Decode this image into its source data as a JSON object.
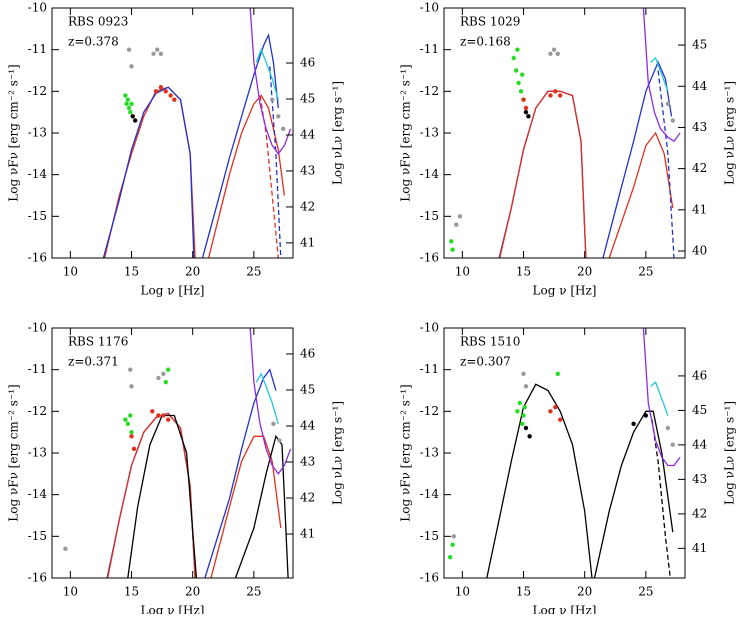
{
  "chart_data": [
    {
      "type": "line",
      "annotations": [
        "RBS 0923",
        "z=0.378"
      ],
      "xlabel": "Log ν [Hz]",
      "ylabel": "Log νFν [erg cm⁻² s⁻¹]",
      "y2label": "Log νLν [erg s⁻¹]",
      "xlim": [
        8.5,
        28.2
      ],
      "xticks": [
        10,
        15,
        20,
        25
      ],
      "ylim": [
        -16,
        -10
      ],
      "yticks": [
        -16,
        -15,
        -14,
        -13,
        -12,
        -11,
        -10
      ],
      "y2lim": [
        40.58,
        47.53
      ],
      "y2ticks": [
        41,
        42,
        43,
        44,
        45,
        46
      ],
      "series": [
        {
          "mode": "line",
          "color": "#e0301e",
          "dashed": false,
          "x": [
            12.8,
            14,
            15,
            16,
            17,
            18,
            19,
            19.8,
            20.2
          ],
          "values": [
            -16,
            -14.5,
            -13.5,
            -12.6,
            -12.0,
            -11.9,
            -12.2,
            -13.5,
            -16
          ]
        },
        {
          "mode": "line",
          "color": "#2233cc",
          "dashed": false,
          "x": [
            12.7,
            14,
            15,
            16,
            17,
            18,
            19,
            19.8,
            20.1
          ],
          "values": [
            -16,
            -14.6,
            -13.4,
            -12.5,
            -12.05,
            -11.9,
            -12.2,
            -13.5,
            -16
          ]
        },
        {
          "mode": "line",
          "color": "#2233cc",
          "dashed": false,
          "x": [
            20.8,
            22,
            23,
            24,
            25,
            25.8,
            26.2,
            26.6,
            27.0
          ],
          "values": [
            -16,
            -14.7,
            -13.6,
            -12.6,
            -11.6,
            -10.9,
            -10.65,
            -11.3,
            -12.4
          ]
        },
        {
          "mode": "line",
          "color": "#e0301e",
          "dashed": false,
          "x": [
            21.3,
            23,
            24,
            25,
            25.6,
            26.2,
            27,
            27.5
          ],
          "values": [
            -16,
            -14.0,
            -13.0,
            -12.3,
            -12.1,
            -12.4,
            -13.4,
            -14.5
          ]
        },
        {
          "mode": "line",
          "color": "#e0301e",
          "dashed": true,
          "x": [
            25.5,
            26,
            26.5,
            27
          ],
          "values": [
            -12.1,
            -13.0,
            -14.5,
            -16
          ]
        },
        {
          "mode": "line",
          "color": "#2233cc",
          "dashed": true,
          "x": [
            26.3,
            26.8,
            27.2
          ],
          "values": [
            -11.4,
            -13.5,
            -16
          ]
        },
        {
          "mode": "line",
          "color": "#8a2be2",
          "dashed": false,
          "x": [
            24.7,
            25,
            25.5,
            26,
            26.5,
            27,
            27.5,
            28
          ],
          "values": [
            -10,
            -11.3,
            -12.3,
            -12.9,
            -13.3,
            -13.5,
            -13.3,
            -12.9
          ]
        },
        {
          "mode": "line",
          "color": "#1fc8d8",
          "dashed": false,
          "x": [
            25.2,
            25.6,
            26,
            26.5,
            27
          ],
          "values": [
            -11.3,
            -11.0,
            -11.3,
            -11.7,
            -12.2
          ]
        },
        {
          "mode": "points",
          "color": "#22dd22",
          "x": [
            14.5,
            14.6,
            14.7,
            14.8,
            14.9,
            15.0
          ],
          "values": [
            -12.1,
            -12.3,
            -12.2,
            -12.4,
            -12.5,
            -12.3
          ]
        },
        {
          "mode": "points",
          "color": "#e0301e",
          "x": [
            17.0,
            17.4,
            17.8,
            18.2,
            18.5
          ],
          "values": [
            -12.0,
            -11.9,
            -12.0,
            -12.1,
            -12.2
          ]
        },
        {
          "mode": "points",
          "color": "#999999",
          "x": [
            14.8,
            15.0,
            16.8,
            17.1,
            17.4,
            26.5,
            27.0,
            27.4
          ],
          "values": [
            -11.0,
            -11.4,
            -11.1,
            -11.0,
            -11.1,
            -12.2,
            -12.6,
            -12.9
          ]
        },
        {
          "mode": "points",
          "color": "#000000",
          "x": [
            15.1,
            15.3
          ],
          "values": [
            -12.6,
            -12.7
          ]
        }
      ]
    },
    {
      "type": "line",
      "annotations": [
        "RBS 1029",
        "z=0.168"
      ],
      "xlabel": "Log ν [Hz]",
      "ylabel": "Log νFν [erg cm⁻² s⁻¹]",
      "y2label": "Log νLν [erg s⁻¹]",
      "xlim": [
        8.5,
        28.2
      ],
      "xticks": [
        10,
        15,
        20,
        25
      ],
      "ylim": [
        -16,
        -10
      ],
      "yticks": [
        -16,
        -15,
        -14,
        -13,
        -12,
        -11,
        -10
      ],
      "y2lim": [
        39.83,
        45.9
      ],
      "y2ticks": [
        40,
        41,
        42,
        43,
        44,
        45
      ],
      "series": [
        {
          "mode": "line",
          "color": "#2233cc",
          "dashed": false,
          "x": [
            13,
            14,
            15,
            16,
            17,
            18,
            19,
            19.7,
            20.1
          ],
          "values": [
            -16,
            -14.8,
            -13.4,
            -12.4,
            -12.0,
            -12.0,
            -12.1,
            -13.2,
            -16
          ]
        },
        {
          "mode": "line",
          "color": "#e0301e",
          "dashed": false,
          "x": [
            13.05,
            14,
            15,
            16,
            17,
            18,
            19,
            19.7,
            20.1
          ],
          "values": [
            -16,
            -14.8,
            -13.4,
            -12.4,
            -12.0,
            -12.0,
            -12.1,
            -13.2,
            -16
          ]
        },
        {
          "mode": "line",
          "color": "#2233cc",
          "dashed": false,
          "x": [
            21.5,
            23,
            24,
            25,
            26,
            26.6,
            27.1
          ],
          "values": [
            -16,
            -14.3,
            -13.2,
            -12.0,
            -11.3,
            -11.7,
            -12.6
          ]
        },
        {
          "mode": "line",
          "color": "#e0301e",
          "dashed": false,
          "x": [
            22,
            24,
            25,
            25.8,
            26.5,
            27.2
          ],
          "values": [
            -16,
            -14.3,
            -13.3,
            -13.0,
            -13.5,
            -14.8
          ]
        },
        {
          "mode": "line",
          "color": "#2233cc",
          "dashed": true,
          "x": [
            26.0,
            26.8,
            27.3
          ],
          "values": [
            -11.5,
            -13.5,
            -16
          ]
        },
        {
          "mode": "line",
          "color": "#8a2be2",
          "dashed": false,
          "x": [
            24.8,
            25.2,
            25.7,
            26.2,
            26.8,
            27.3,
            27.8
          ],
          "values": [
            -10,
            -11.8,
            -12.5,
            -12.9,
            -13.1,
            -13.2,
            -13.0
          ]
        },
        {
          "mode": "line",
          "color": "#1fc8d8",
          "dashed": false,
          "x": [
            25.4,
            25.8,
            26.3,
            26.8
          ],
          "values": [
            -11.3,
            -11.2,
            -11.6,
            -12.0
          ]
        },
        {
          "mode": "points",
          "color": "#22dd22",
          "x": [
            14.2,
            14.4,
            14.6,
            14.8,
            15.0,
            14.5,
            14.9,
            9.1,
            9.2
          ],
          "values": [
            -11.2,
            -11.5,
            -11.8,
            -12.0,
            -12.2,
            -11.0,
            -11.6,
            -15.6,
            -15.8
          ]
        },
        {
          "mode": "points",
          "color": "#e0301e",
          "x": [
            15.0,
            15.2,
            17.2,
            17.6,
            18.0
          ],
          "values": [
            -12.2,
            -12.4,
            -12.1,
            -12.0,
            -12.1
          ]
        },
        {
          "mode": "points",
          "color": "#999999",
          "x": [
            9.5,
            9.8,
            17.2,
            17.5,
            17.8,
            26.8,
            27.2
          ],
          "values": [
            -15.2,
            -15.0,
            -11.1,
            -11.0,
            -11.1,
            -12.3,
            -12.7
          ]
        },
        {
          "mode": "points",
          "color": "#000000",
          "x": [
            15.2,
            15.4
          ],
          "values": [
            -12.5,
            -12.6
          ]
        }
      ]
    },
    {
      "type": "line",
      "annotations": [
        "RBS 1176",
        "z=0.371"
      ],
      "xlabel": "Log ν [Hz]",
      "ylabel": "Log νFν [erg cm⁻² s⁻¹]",
      "y2label": "Log νLν [erg s⁻¹]",
      "xlim": [
        8.5,
        28.2
      ],
      "xticks": [
        10,
        15,
        20,
        25
      ],
      "ylim": [
        -16,
        -10
      ],
      "yticks": [
        -16,
        -15,
        -14,
        -13,
        -12,
        -11,
        -10
      ],
      "y2lim": [
        39.78,
        46.72
      ],
      "y2ticks": [
        41,
        42,
        43,
        44,
        45,
        46
      ],
      "series": [
        {
          "mode": "line",
          "color": "#2233cc",
          "dashed": false,
          "x": [
            13,
            14,
            15,
            16,
            17,
            18,
            19,
            19.8,
            20.2
          ],
          "values": [
            -16,
            -14.6,
            -13.3,
            -12.5,
            -12.15,
            -12.05,
            -12.4,
            -13.8,
            -16
          ]
        },
        {
          "mode": "line",
          "color": "#e0301e",
          "dashed": false,
          "x": [
            13.05,
            14,
            15,
            16,
            17,
            18,
            19,
            19.8,
            20.2
          ],
          "values": [
            -16,
            -14.6,
            -13.3,
            -12.5,
            -12.15,
            -12.05,
            -12.4,
            -13.8,
            -16
          ]
        },
        {
          "mode": "line",
          "color": "#000000",
          "dashed": false,
          "x": [
            14.7,
            15.5,
            16.5,
            17.5,
            18.5,
            19.5,
            20.3
          ],
          "values": [
            -16,
            -14.3,
            -12.8,
            -12.1,
            -12.1,
            -13.0,
            -16
          ]
        },
        {
          "mode": "line",
          "color": "#2233cc",
          "dashed": false,
          "x": [
            21,
            23,
            24,
            25,
            25.8,
            26.3,
            26.8
          ],
          "values": [
            -16,
            -14.1,
            -12.9,
            -11.8,
            -11.2,
            -11.0,
            -11.5
          ]
        },
        {
          "mode": "line",
          "color": "#e0301e",
          "dashed": false,
          "x": [
            21.5,
            23,
            24,
            25,
            25.8,
            26.5,
            27.2
          ],
          "values": [
            -16,
            -14.3,
            -13.2,
            -12.6,
            -12.6,
            -13.2,
            -14.8
          ]
        },
        {
          "mode": "line",
          "color": "#000000",
          "dashed": false,
          "x": [
            23.5,
            25,
            26,
            26.8,
            27.3,
            27.8
          ],
          "values": [
            -16,
            -14.8,
            -13.5,
            -12.6,
            -12.8,
            -16
          ]
        },
        {
          "mode": "line",
          "color": "#8a2be2",
          "dashed": false,
          "x": [
            24.7,
            25,
            25.5,
            26,
            26.5,
            27,
            27.5,
            28
          ],
          "values": [
            -10,
            -11.3,
            -12.3,
            -12.9,
            -13.3,
            -13.5,
            -13.3,
            -12.9
          ]
        },
        {
          "mode": "line",
          "color": "#1fc8d8",
          "dashed": false,
          "x": [
            25.2,
            25.6,
            26,
            26.5,
            27
          ],
          "values": [
            -11.3,
            -11.1,
            -11.4,
            -11.8,
            -12.3
          ]
        },
        {
          "mode": "points",
          "color": "#22dd22",
          "x": [
            14.5,
            14.7,
            14.9,
            15.0,
            17.8,
            18.0
          ],
          "values": [
            -12.2,
            -12.3,
            -12.1,
            -12.5,
            -11.3,
            -11.0
          ]
        },
        {
          "mode": "points",
          "color": "#e0301e",
          "x": [
            15.0,
            15.2,
            16.7,
            17.2,
            17.6,
            18.0
          ],
          "values": [
            -12.6,
            -12.9,
            -12.0,
            -12.1,
            -12.1,
            -12.2
          ]
        },
        {
          "mode": "points",
          "color": "#999999",
          "x": [
            9.6,
            14.9,
            15.0,
            17.2,
            17.6,
            26.6,
            27.1
          ],
          "values": [
            -15.3,
            -11.0,
            -11.4,
            -11.2,
            -11.1,
            -12.3,
            -12.7
          ]
        }
      ]
    },
    {
      "type": "line",
      "annotations": [
        "RBS 1510",
        "z=0.307"
      ],
      "xlabel": "Log ν [Hz]",
      "ylabel": "Log νFν [erg cm⁻² s⁻¹]",
      "y2label": "Log νLν [erg s⁻¹]",
      "xlim": [
        8.5,
        28.2
      ],
      "xticks": [
        10,
        15,
        20,
        25
      ],
      "ylim": [
        -16,
        -10
      ],
      "yticks": [
        -16,
        -15,
        -14,
        -13,
        -12,
        -11,
        -10
      ],
      "y2lim": [
        40.14,
        47.39
      ],
      "y2ticks": [
        41,
        42,
        43,
        44,
        45,
        46
      ],
      "series": [
        {
          "mode": "line",
          "color": "#000000",
          "dashed": false,
          "x": [
            12,
            13,
            14,
            15,
            16,
            17,
            18,
            19,
            20,
            20.6
          ],
          "values": [
            -16,
            -14.6,
            -13.2,
            -11.9,
            -11.35,
            -11.5,
            -12.0,
            -12.8,
            -14.4,
            -16
          ]
        },
        {
          "mode": "line",
          "color": "#000000",
          "dashed": false,
          "x": [
            20.8,
            22,
            23,
            24,
            25,
            25.6,
            26.3,
            27.2
          ],
          "values": [
            -16,
            -14.4,
            -13.3,
            -12.5,
            -12.0,
            -12.0,
            -13.0,
            -14.9
          ]
        },
        {
          "mode": "line",
          "color": "#000000",
          "dashed": true,
          "x": [
            25.5,
            26,
            26.6,
            27
          ],
          "values": [
            -12.2,
            -13.2,
            -15.0,
            -16
          ]
        },
        {
          "mode": "line",
          "color": "#8a2be2",
          "dashed": false,
          "x": [
            24.8,
            25.2,
            25.8,
            26.3,
            26.8,
            27.3,
            27.8
          ],
          "values": [
            -10,
            -11.8,
            -12.7,
            -13.1,
            -13.3,
            -13.3,
            -13.1
          ]
        },
        {
          "mode": "line",
          "color": "#1fc8d8",
          "dashed": false,
          "x": [
            25.4,
            25.8,
            26.3,
            26.8
          ],
          "values": [
            -11.4,
            -11.3,
            -11.7,
            -12.1
          ]
        },
        {
          "mode": "points",
          "color": "#22dd22",
          "x": [
            14.5,
            14.7,
            14.9,
            15.0,
            15.1,
            17.8,
            9.2,
            9.0
          ],
          "values": [
            -12.0,
            -11.8,
            -12.3,
            -12.1,
            -11.9,
            -11.1,
            -15.2,
            -15.5
          ]
        },
        {
          "mode": "points",
          "color": "#e0301e",
          "x": [
            17.2,
            17.6,
            18.0
          ],
          "values": [
            -12.0,
            -11.9,
            -12.2
          ]
        },
        {
          "mode": "points",
          "color": "#999999",
          "x": [
            9.3,
            15.0,
            15.2,
            26.8,
            27.2
          ],
          "values": [
            -15.0,
            -11.1,
            -11.4,
            -12.4,
            -12.8
          ]
        },
        {
          "mode": "points",
          "color": "#000000",
          "x": [
            15.2,
            15.5,
            24.0,
            25.0
          ],
          "values": [
            -12.4,
            -12.6,
            -12.3,
            -12.1
          ]
        }
      ]
    }
  ]
}
